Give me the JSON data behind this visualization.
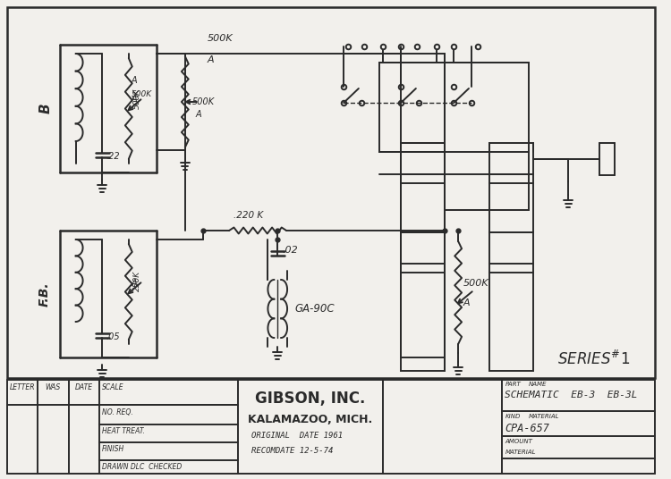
{
  "bg_color": "#f2f0ec",
  "line_color": "#2a2a2a",
  "title_block": {
    "company": "GIBSON, INC.",
    "city": "KALAMAZOO, MICH.",
    "original_date": "ORIGINAL  DATE 1961",
    "recomdate": "RECOMDATE 12-5-74",
    "part_name": "SCHEMATIC  EB-3  EB-3L",
    "kind_material": "CPA-657",
    "letter": "LETTER",
    "was": "WAS",
    "date": "DATE",
    "scale": "SCALE",
    "no_req": "NO. REQ.",
    "heat_treat": "HEAT TREAT.",
    "finish": "FINISH",
    "drawn": "DRAWN DLC  CHECKED",
    "amount": "AMOUNT",
    "material": "MATERIAL"
  }
}
